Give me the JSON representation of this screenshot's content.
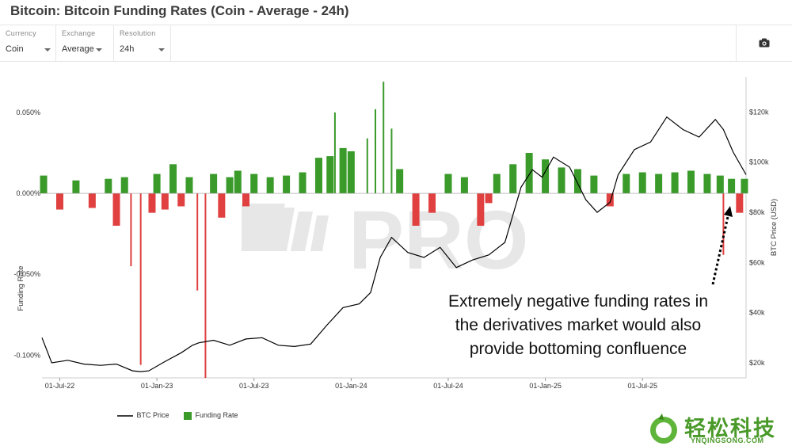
{
  "title": "Bitcoin: Bitcoin Funding Rates (Coin - Average - 24h)",
  "controls": {
    "currency": {
      "label": "Currency",
      "value": "Coin"
    },
    "exchange": {
      "label": "Exchange",
      "value": "Average"
    },
    "resolution": {
      "label": "Resolution",
      "value": "24h"
    }
  },
  "colors": {
    "positive": "#3a9a2a",
    "negative": "#e04040",
    "price": "#000000"
  },
  "chart_data": {
    "type": "bar+line",
    "ylabel_left": "Funding Rate",
    "ylabel_right": "BTC Price (USD)",
    "left_ticks": [
      "0.050%",
      "0.000%",
      "-0.050%",
      "-0.100%"
    ],
    "left_tick_values": [
      0.05,
      0.0,
      -0.05,
      -0.1
    ],
    "left_ylim": [
      -0.114,
      0.072
    ],
    "right_ticks": [
      "$120k",
      "$100k",
      "$80k",
      "$60k",
      "$40k",
      "$20k"
    ],
    "right_tick_values": [
      120000,
      100000,
      80000,
      60000,
      40000,
      20000
    ],
    "right_ylim": [
      14000,
      134000
    ],
    "x_ticks": [
      "01-Jul-22",
      "01-Jan-23",
      "01-Jul-23",
      "01-Jan-24",
      "01-Jul-24",
      "01-Jan-25",
      "01-Jul-25"
    ],
    "x_tick_index": [
      6,
      12,
      18,
      24,
      30,
      36,
      42
    ],
    "x_range": [
      4.9,
      48.4
    ],
    "series": [
      {
        "name": "BTC Price",
        "kind": "line",
        "months": [
          4.9,
          5.5,
          6.5,
          7.5,
          8.5,
          9.5,
          10.5,
          11.0,
          11.5,
          12.5,
          13.5,
          14.2,
          14.6,
          15.5,
          16.5,
          17.5,
          18.5,
          19.5,
          20.5,
          21.5,
          22.5,
          23.5,
          24.5,
          25.2,
          25.8,
          26.5,
          27.5,
          28.5,
          29.5,
          30.5,
          31.5,
          32.5,
          33.5,
          34.5,
          35.2,
          35.8,
          36.5,
          37.5,
          38.5,
          39.2,
          40.0,
          40.5,
          41.5,
          42.5,
          43.5,
          44.5,
          45.5,
          46.5,
          47.0,
          47.6,
          48.4
        ],
        "values": [
          30000,
          20000,
          21000,
          19500,
          19000,
          19500,
          16800,
          16500,
          16800,
          20500,
          24000,
          27000,
          28000,
          29000,
          27000,
          29500,
          30000,
          27000,
          26500,
          27500,
          35000,
          42000,
          43500,
          48000,
          62000,
          70000,
          64000,
          62000,
          66000,
          58000,
          61000,
          63000,
          68000,
          90000,
          97000,
          94000,
          102000,
          98000,
          85000,
          80000,
          84000,
          95000,
          105000,
          108000,
          118000,
          113000,
          110000,
          117000,
          113000,
          104000,
          95000
        ]
      },
      {
        "name": "Funding Rate",
        "kind": "bar",
        "months": [
          5.0,
          6.0,
          7.0,
          8.0,
          9.0,
          9.5,
          10.0,
          10.4,
          11.0,
          11.7,
          12.0,
          12.5,
          13.0,
          13.5,
          14.0,
          14.5,
          15.0,
          15.5,
          16.0,
          16.5,
          17.0,
          17.5,
          18.0,
          19.0,
          20.0,
          21.0,
          22.0,
          22.7,
          23.0,
          23.5,
          24.0,
          25.0,
          25.5,
          26.0,
          26.5,
          27.0,
          28.0,
          29.0,
          30.0,
          31.0,
          32.0,
          32.5,
          33.0,
          34.0,
          35.0,
          36.0,
          37.0,
          38.0,
          39.0,
          40.0,
          41.0,
          42.0,
          43.0,
          44.0,
          45.0,
          46.0,
          46.8,
          47.0,
          47.5,
          48.0,
          48.3
        ],
        "values": [
          0.011,
          -0.01,
          0.008,
          -0.009,
          0.009,
          -0.02,
          0.01,
          -0.045,
          -0.106,
          -0.012,
          0.012,
          -0.01,
          0.018,
          -0.008,
          0.01,
          -0.06,
          -0.114,
          0.012,
          -0.015,
          0.01,
          0.014,
          -0.008,
          0.012,
          0.01,
          0.011,
          0.013,
          0.022,
          0.023,
          0.05,
          0.028,
          0.026,
          0.034,
          0.052,
          0.069,
          0.04,
          0.015,
          -0.02,
          -0.012,
          0.012,
          0.01,
          -0.02,
          -0.006,
          0.012,
          0.018,
          0.025,
          0.021,
          0.016,
          0.015,
          0.011,
          -0.008,
          0.012,
          0.013,
          0.012,
          0.013,
          0.014,
          0.012,
          0.011,
          -0.038,
          0.009,
          -0.012,
          0.009
        ]
      }
    ],
    "annotation": [
      "Extremely negative funding rates in",
      "the derivatives market would also",
      "provide bottoming confluence"
    ]
  },
  "watermark": "PRO",
  "legend": {
    "price": "BTC Price",
    "funding": "Funding Rate"
  },
  "logo": {
    "cn": "轻松科技",
    "en": "YNQINGSONG.COM"
  }
}
